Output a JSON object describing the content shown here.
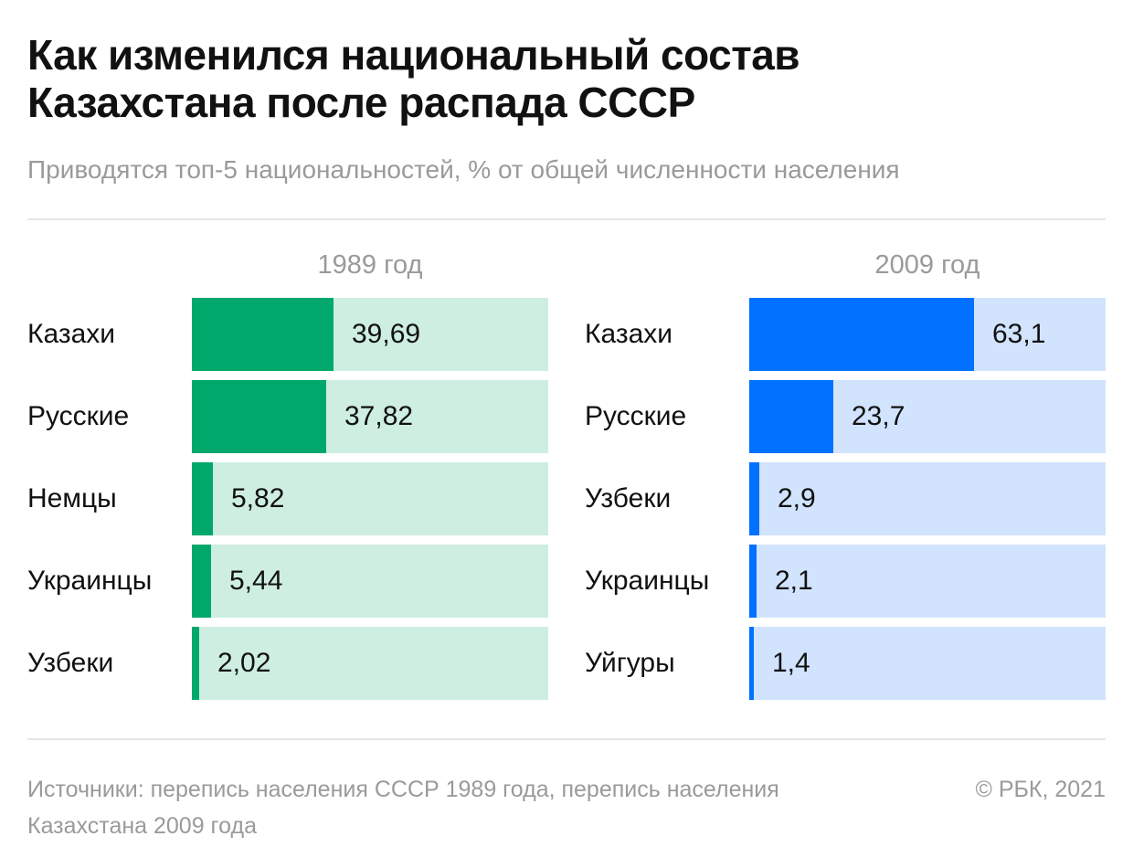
{
  "header": {
    "title_line1": "Как изменился национальный состав",
    "title_line2": "Казахстана после распада СССР",
    "subtitle": "Приводятся топ-5 национальностей, % от общей численности населения"
  },
  "chart_data": [
    {
      "type": "bar",
      "title": "1989 год",
      "orientation": "horizontal",
      "categories": [
        "Казахи",
        "Русские",
        "Немцы",
        "Украинцы",
        "Узбеки"
      ],
      "values": [
        39.69,
        37.82,
        5.82,
        5.44,
        2.02
      ],
      "value_labels": [
        "39,69",
        "37,82",
        "5,82",
        "5,44",
        "2,02"
      ],
      "xlim": [
        0,
        100
      ],
      "colors": {
        "fill": "#00a86b",
        "track": "#cdeee1"
      }
    },
    {
      "type": "bar",
      "title": "2009 год",
      "orientation": "horizontal",
      "categories": [
        "Казахи",
        "Русские",
        "Узбеки",
        "Украинцы",
        "Уйгуры"
      ],
      "values": [
        63.1,
        23.7,
        2.9,
        2.1,
        1.4
      ],
      "value_labels": [
        "63,1",
        "23,7",
        "2,9",
        "2,1",
        "1,4"
      ],
      "xlim": [
        0,
        100
      ],
      "colors": {
        "fill": "#0072ff",
        "track": "#d1e3fd"
      }
    }
  ],
  "footer": {
    "source": "Источники: перепись населения СССР 1989 года, перепись населения Казахстана 2009 года",
    "credit": "© РБК, 2021"
  }
}
